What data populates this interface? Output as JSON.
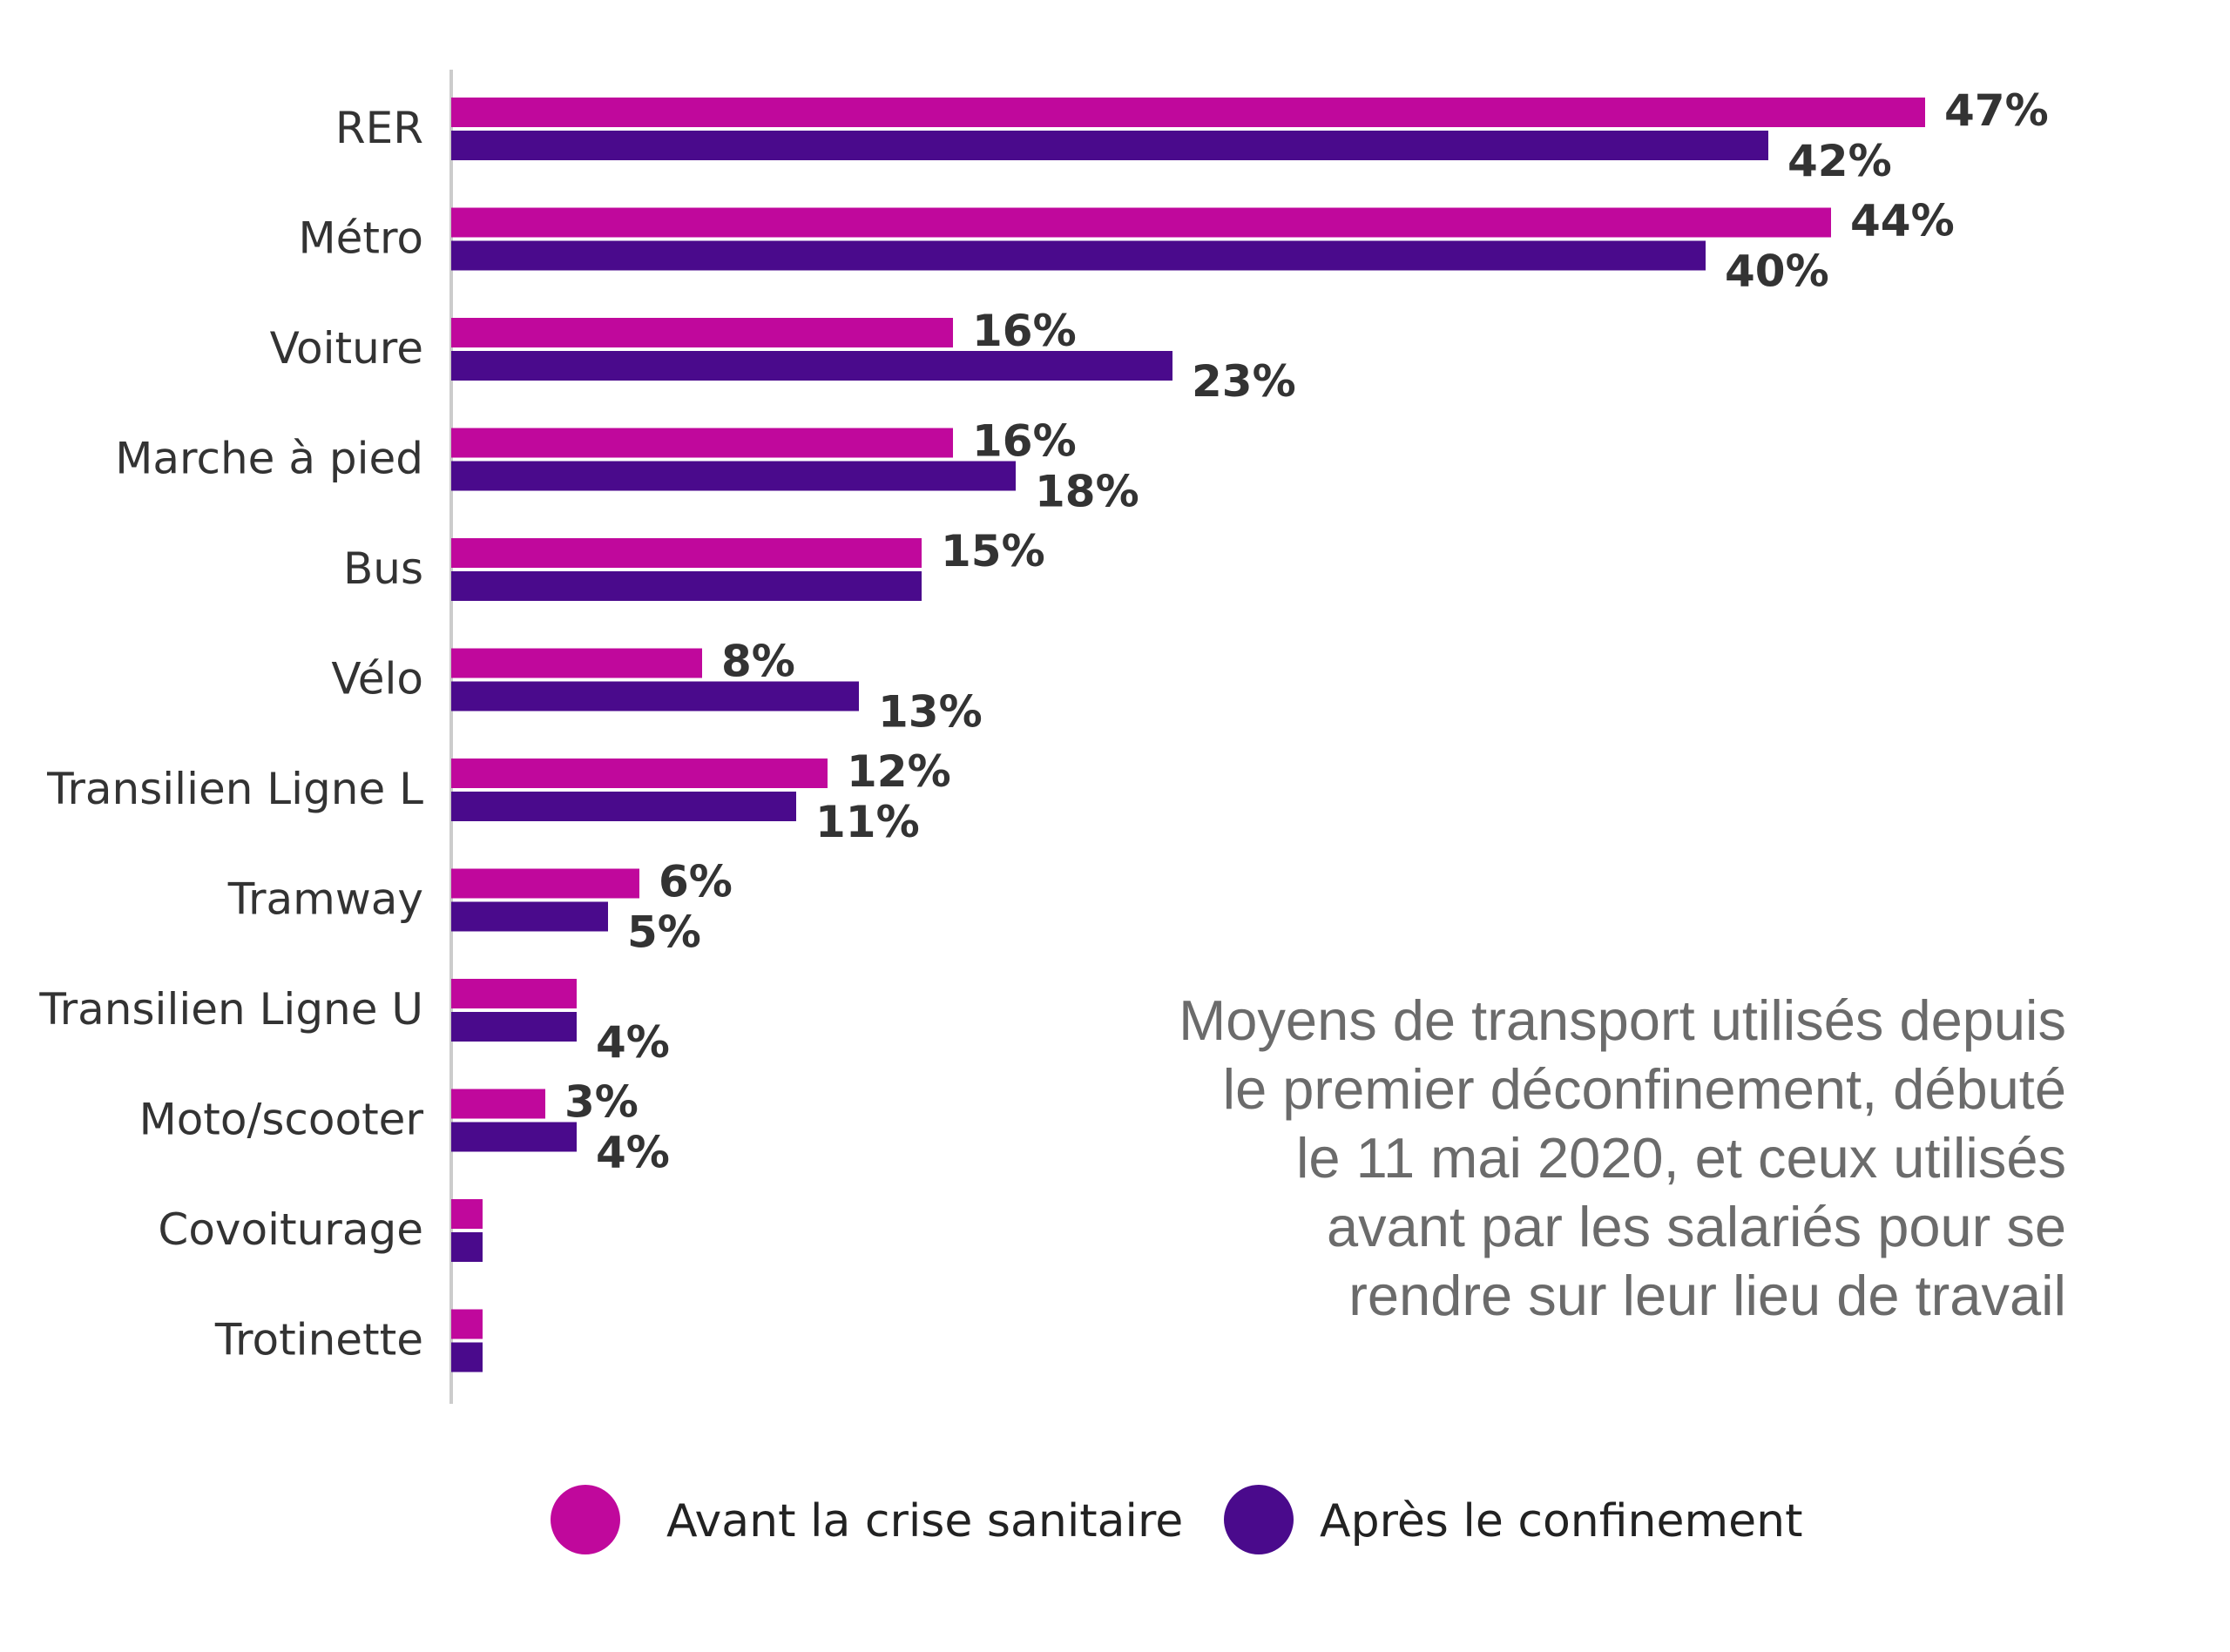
{
  "chart_data": {
    "type": "bar",
    "orientation": "horizontal",
    "title": "",
    "xlabel": "",
    "ylabel": "",
    "xlim": [
      0,
      47
    ],
    "grid": false,
    "legend_position": "bottom",
    "categories": [
      "RER",
      "Métro",
      "Voiture",
      "Marche à pied",
      "Bus",
      "Vélo",
      "Transilien Ligne L",
      "Tramway",
      "Transilien Ligne U",
      "Moto/scooter",
      "Covoiturage",
      "Trotinette"
    ],
    "series": [
      {
        "name": "Avant la crise sanitaire",
        "color": "#c0089c",
        "values": [
          47,
          44,
          16,
          16,
          15,
          8,
          12,
          6,
          4,
          3,
          1,
          1
        ],
        "labels": [
          "47%",
          "44%",
          "16%",
          "16%",
          "15%",
          "8%",
          "12%",
          "6%",
          "",
          "3%",
          "",
          ""
        ]
      },
      {
        "name": "Après le confinement",
        "color": "#4a0a8c",
        "values": [
          42,
          40,
          23,
          18,
          15,
          13,
          11,
          5,
          4,
          4,
          1,
          1
        ],
        "labels": [
          "42%",
          "40%",
          "23%",
          "18%",
          "",
          "13%",
          "11%",
          "5%",
          "4%",
          "4%",
          "",
          ""
        ]
      }
    ],
    "annotation": "Moyens de transport utilisés depuis le premier déconfinement, débuté le 11 mai 2020, et ceux utilisés avant par les salariés pour se rendre sur leur lieu de travail",
    "annotation_lines": [
      "Moyens de transport utilisés depuis",
      "le premier déconfinement, débuté",
      "le 11 mai 2020, et ceux utilisés",
      "avant par les salariés pour se",
      "rendre sur leur lieu de travail"
    ]
  }
}
